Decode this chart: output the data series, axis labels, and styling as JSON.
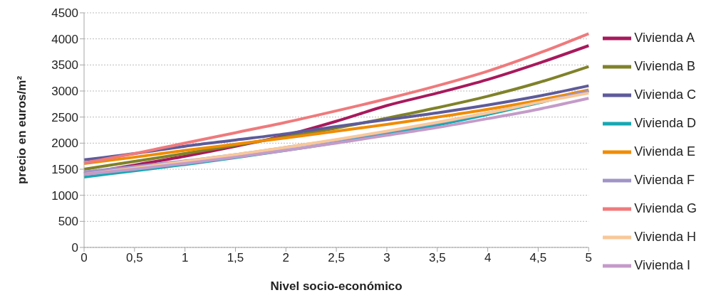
{
  "chart_data": {
    "type": "line",
    "xlabel": "Nivel socio-económico",
    "ylabel": "precio en euros/m²",
    "categories": [
      "0",
      "0,5",
      "1",
      "1,5",
      "2",
      "2,5",
      "3",
      "3,5",
      "4",
      "4,5",
      "5"
    ],
    "ylim": [
      0,
      4500
    ],
    "yticks": [
      0,
      500,
      1000,
      1500,
      2000,
      2500,
      3000,
      3500,
      4000,
      4500
    ],
    "grid": "y",
    "legend": "right",
    "marker": "none",
    "line_style": "solid",
    "series": [
      {
        "name": "Vivienda A",
        "color": "#a8195c",
        "values": [
          1420,
          1580,
          1750,
          1940,
          2150,
          2420,
          2720,
          2960,
          3220,
          3530,
          3870
        ]
      },
      {
        "name": "Vivienda B",
        "color": "#7f8228",
        "values": [
          1500,
          1650,
          1800,
          1960,
          2120,
          2290,
          2480,
          2680,
          2900,
          3160,
          3470
        ]
      },
      {
        "name": "Vivienda C",
        "color": "#5e5b9a",
        "values": [
          1680,
          1800,
          1940,
          2060,
          2180,
          2320,
          2450,
          2580,
          2730,
          2900,
          3100
        ]
      },
      {
        "name": "Vivienda D",
        "color": "#17a8b3",
        "values": [
          1350,
          1470,
          1590,
          1720,
          1860,
          2010,
          2180,
          2350,
          2550,
          2770,
          3000
        ]
      },
      {
        "name": "Vivienda E",
        "color": "#f08c00",
        "values": [
          1610,
          1730,
          1860,
          1980,
          2100,
          2230,
          2360,
          2500,
          2650,
          2820,
          3020
        ]
      },
      {
        "name": "Vivienda F",
        "color": "#9f94c8",
        "values": [
          1450,
          1550,
          1660,
          1780,
          1920,
          2060,
          2220,
          2390,
          2580,
          2780,
          3000
        ]
      },
      {
        "name": "Vivienda G",
        "color": "#ef7a7c",
        "values": [
          1620,
          1800,
          2000,
          2200,
          2400,
          2620,
          2850,
          3100,
          3380,
          3720,
          4100
        ]
      },
      {
        "name": "Vivienda H",
        "color": "#f8c89a",
        "values": [
          1400,
          1520,
          1650,
          1780,
          1920,
          2070,
          2230,
          2400,
          2580,
          2780,
          2960
        ]
      },
      {
        "name": "Vivienda I",
        "color": "#c49bc9",
        "values": [
          1400,
          1500,
          1610,
          1730,
          1860,
          2000,
          2150,
          2300,
          2470,
          2650,
          2860
        ]
      }
    ]
  }
}
